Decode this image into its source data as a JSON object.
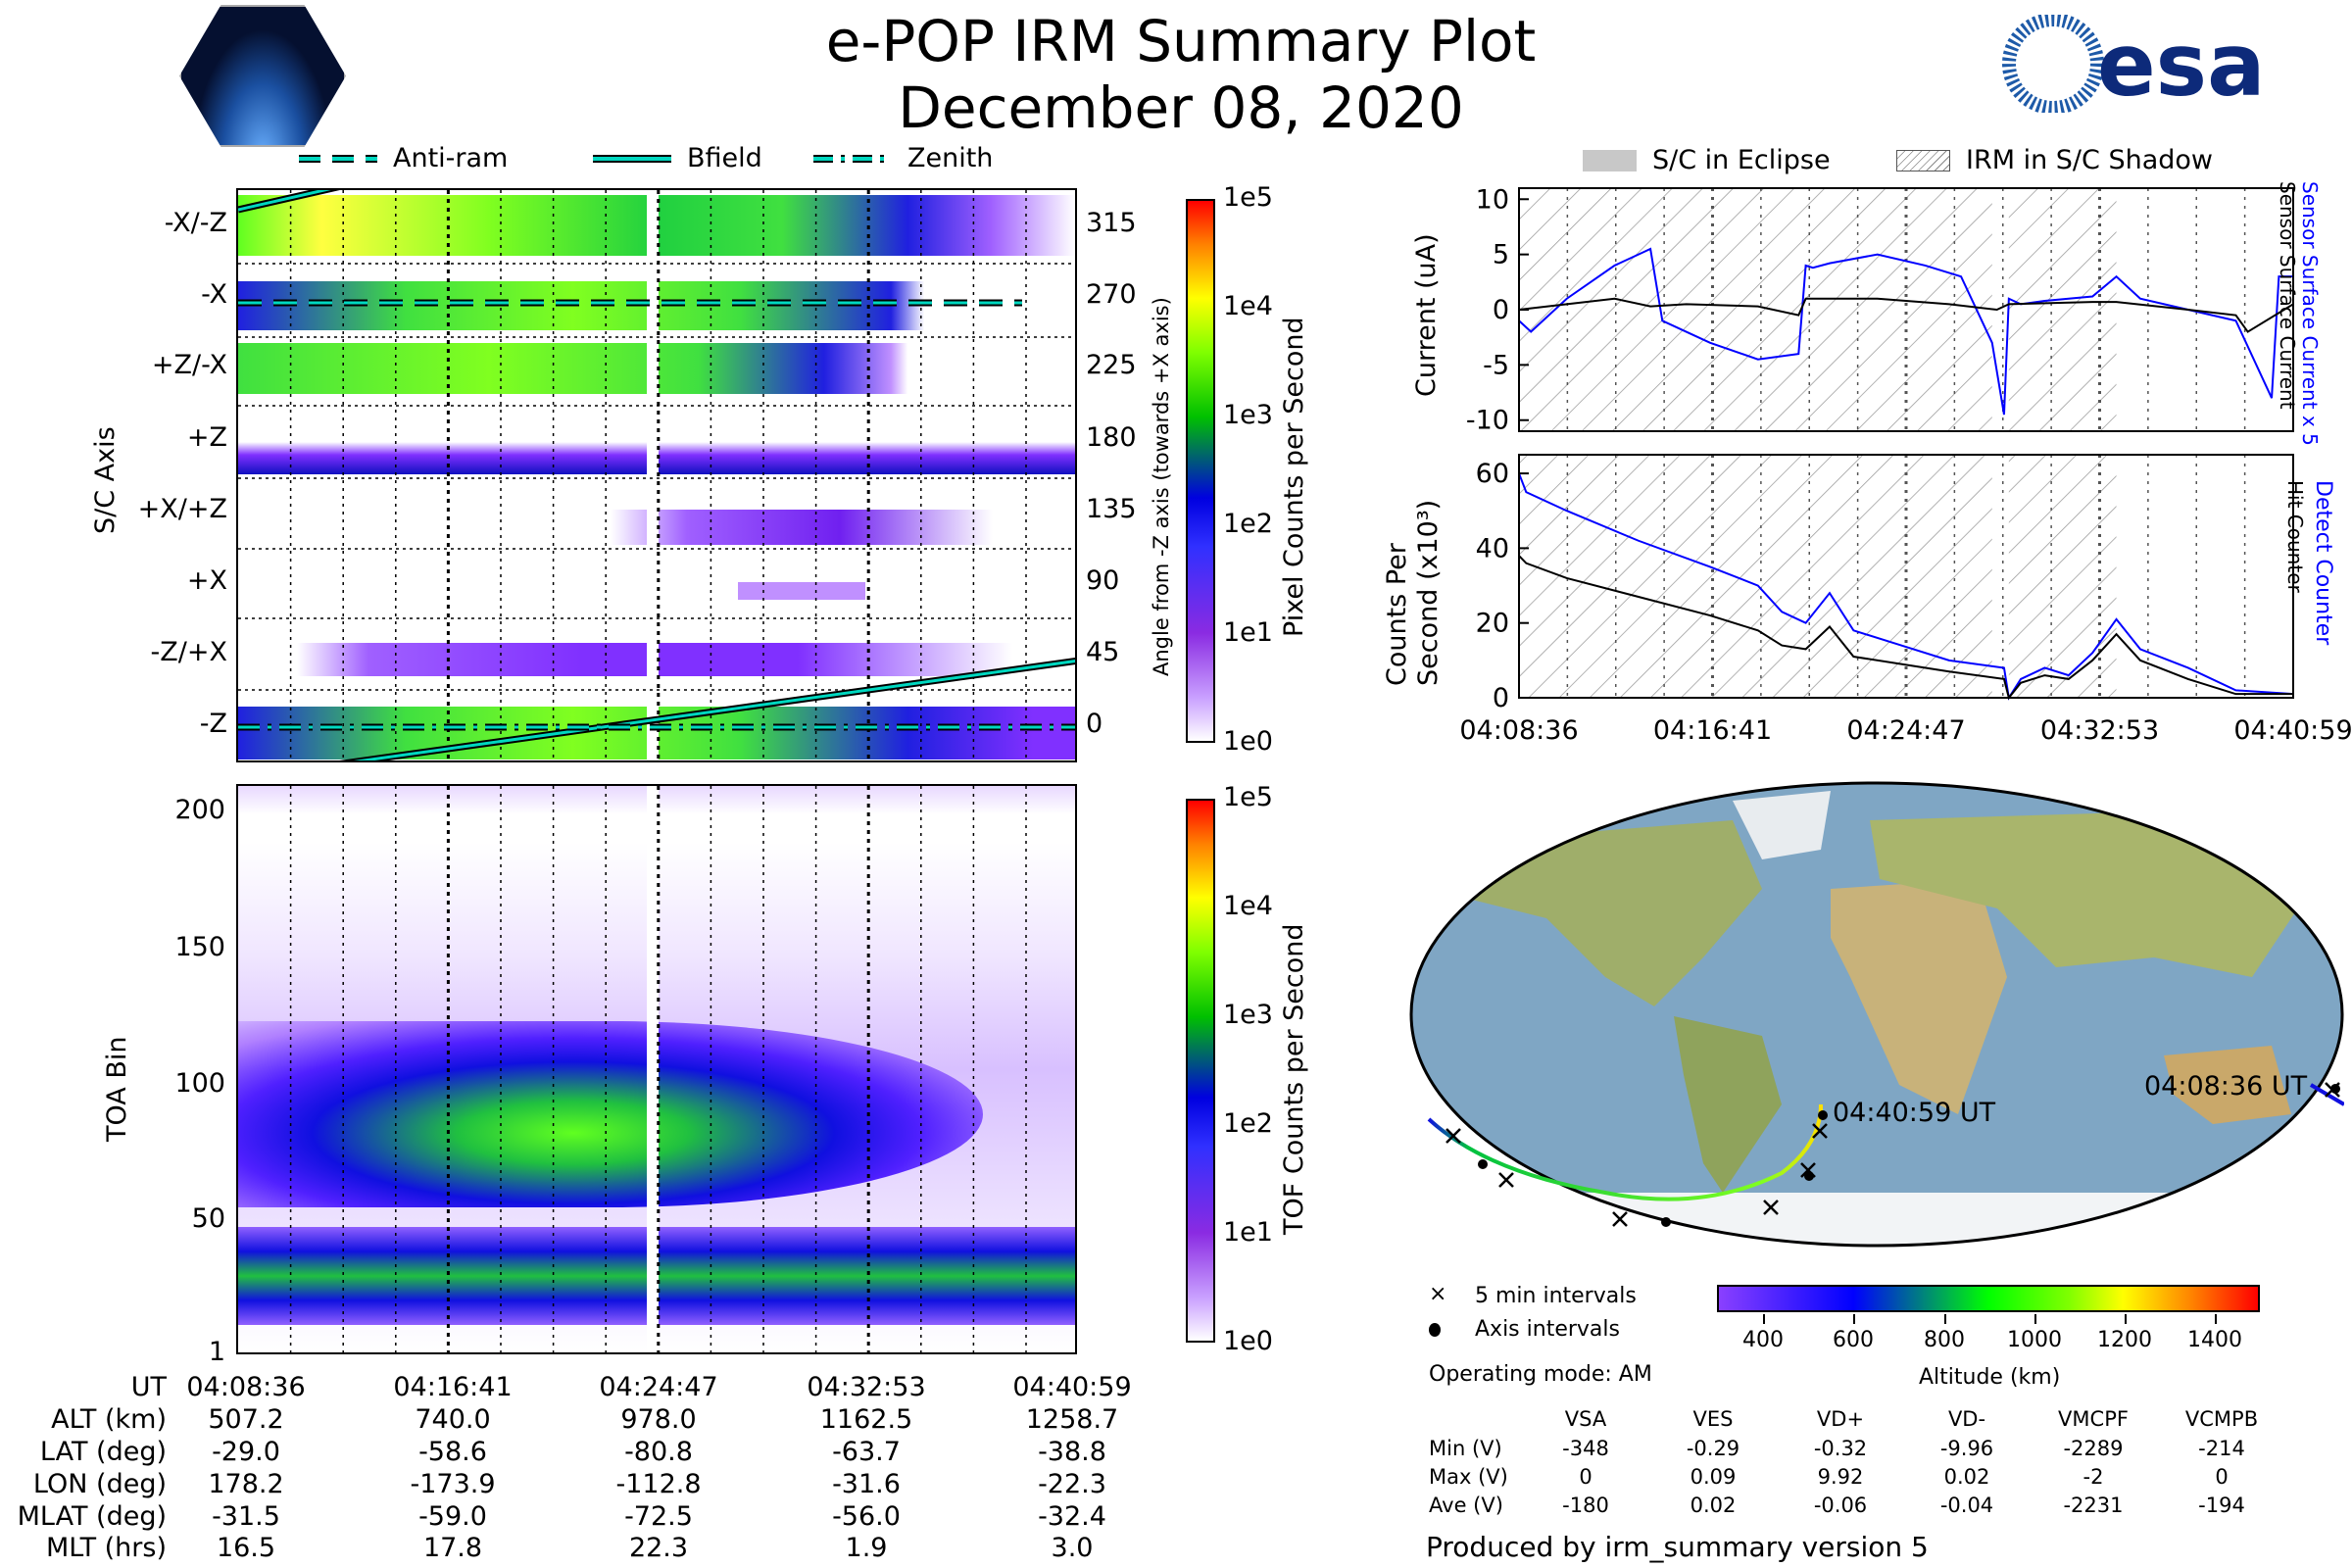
{
  "header": {
    "title": "e-POP IRM Summary Plot",
    "date": "December 08, 2020",
    "logo_left": "CASSIOPE",
    "logo_right": "esa"
  },
  "legend_top": [
    "Anti-ram",
    "Bfield",
    "Zenith"
  ],
  "legend_right": [
    "S/C in Eclipse",
    "IRM in S/C Shadow"
  ],
  "colors": {
    "detect": "#0000ff",
    "hit": "#000000",
    "track_start": "#00c000",
    "track_end": "#ffd700"
  },
  "chart_data": [
    {
      "type": "heatmap",
      "name": "angle-spectrogram",
      "ylabel": "S/C Axis",
      "ylabel_right": "Angle from -Z axis (towards +X axis)",
      "axis_labels": [
        "-X/-Z",
        "-X",
        "+Z/-X",
        "+Z",
        "+X/+Z",
        "+X",
        "-Z/+X",
        "-Z"
      ],
      "right_ticks": [
        "315",
        "270",
        "225",
        "180",
        "135",
        "90",
        "45",
        "0"
      ],
      "colorbar": {
        "label": "Pixel Counts per Second",
        "ticks": [
          "1e5",
          "1e4",
          "1e3",
          "1e2",
          "1e1",
          "1e0"
        ]
      }
    },
    {
      "type": "heatmap",
      "name": "toa-spectrogram",
      "ylabel": "TOA Bin",
      "yticks": [
        "200",
        "150",
        "100",
        "50",
        "1"
      ],
      "ylim": [
        1,
        210
      ],
      "colorbar": {
        "label": "TOF Counts per Second",
        "ticks": [
          "1e5",
          "1e4",
          "1e3",
          "1e2",
          "1e1",
          "1e0"
        ]
      }
    },
    {
      "type": "line",
      "name": "current",
      "ylabel": "Current (uA)",
      "ylim": [
        -11,
        11
      ],
      "yticks": [
        "10",
        "5",
        "0",
        "-5",
        "-10"
      ],
      "xlim": [
        0,
        32.4
      ],
      "series": [
        {
          "name": "Sensor Surface Current x 5",
          "color": "#0000ff",
          "x": [
            0,
            0.5,
            2,
            4,
            5.5,
            6,
            7,
            8,
            10,
            11.7,
            12,
            12.3,
            13,
            15,
            17,
            18.5,
            19.8,
            20.3,
            20.5,
            21,
            22,
            24,
            25,
            26,
            28,
            30,
            31.5,
            31.8,
            32.4
          ],
          "y": [
            -1,
            -2,
            1,
            4,
            5.5,
            -1,
            -2,
            -3,
            -4.5,
            -4,
            4,
            3.8,
            4.2,
            5,
            4,
            3,
            -3,
            -9.5,
            1,
            0.5,
            0.8,
            1.2,
            3,
            1,
            0,
            -1,
            -8,
            3,
            3
          ]
        },
        {
          "name": "Sensor Surface Current",
          "color": "#000000",
          "x": [
            0,
            2,
            4,
            5.5,
            7,
            10,
            11.7,
            12,
            15,
            18,
            20,
            20.5,
            24,
            25,
            28,
            30,
            30.5,
            32.4
          ],
          "y": [
            0,
            0.5,
            1,
            0.3,
            0.5,
            0.3,
            -0.5,
            1,
            1,
            0.5,
            0,
            0.5,
            0.7,
            0.7,
            0,
            -0.5,
            -2,
            0.5
          ]
        }
      ]
    },
    {
      "type": "line",
      "name": "counts",
      "ylabel": "Counts Per Second (x10^3)",
      "ylim": [
        0,
        65
      ],
      "yticks": [
        "60",
        "40",
        "20",
        "0"
      ],
      "xlim": [
        0,
        32.4
      ],
      "xticks": [
        "04:08:36",
        "04:16:41",
        "04:24:47",
        "04:32:53",
        "04:40:59"
      ],
      "series": [
        {
          "name": "Detect Counter",
          "color": "#0000ff",
          "x": [
            0,
            0.3,
            2,
            5,
            8,
            10,
            11,
            12,
            13,
            14,
            16,
            18,
            20.3,
            20.5,
            21,
            22,
            23,
            24,
            25,
            26,
            28,
            30,
            32.4
          ],
          "y": [
            60,
            55,
            50,
            42,
            35,
            30,
            23,
            20,
            28,
            18,
            14,
            10,
            8,
            0,
            5,
            8,
            6,
            12,
            21,
            13,
            8,
            2,
            1
          ]
        },
        {
          "name": "Hit Counter",
          "color": "#000000",
          "x": [
            0,
            0.3,
            2,
            5,
            8,
            10,
            11,
            12,
            13,
            14,
            16,
            18,
            20.3,
            20.5,
            21,
            22,
            23,
            24,
            25,
            26,
            28,
            30,
            32.4
          ],
          "y": [
            38,
            36,
            32,
            27,
            22,
            18,
            14,
            13,
            19,
            11,
            9,
            7,
            5,
            0,
            4,
            6,
            5,
            10,
            17,
            10,
            5,
            1,
            1
          ]
        }
      ]
    }
  ],
  "right_labels": {
    "current_blue": "Sensor Surface Current x 5",
    "current_black": "Sensor Surface Current",
    "counts_blue": "Detect Counter",
    "counts_black": "Hit Counter",
    "counts_ylabel1": "Counts Per",
    "counts_ylabel2": "Second (x10³)"
  },
  "map": {
    "start_label": "04:08:36 UT",
    "end_label": "04:40:59 UT",
    "legend_x": "5 min intervals",
    "legend_dot": "Axis intervals",
    "mode": "Operating mode: AM",
    "alt_label": "Altitude (km)",
    "alt_ticks": [
      "400",
      "600",
      "800",
      "1000",
      "1200",
      "1400"
    ]
  },
  "ephemeris": {
    "rows": [
      "UT",
      "ALT (km)",
      "LAT (deg)",
      "LON (deg)",
      "MLAT (deg)",
      "MLT (hrs)"
    ],
    "cols": [
      [
        "04:08:36",
        "507.2",
        "-29.0",
        "178.2",
        "-31.5",
        "16.5"
      ],
      [
        "04:16:41",
        "740.0",
        "-58.6",
        "-173.9",
        "-59.0",
        "17.8"
      ],
      [
        "04:24:47",
        "978.0",
        "-80.8",
        "-112.8",
        "-72.5",
        "22.3"
      ],
      [
        "04:32:53",
        "1162.5",
        "-63.7",
        "-31.6",
        "-56.0",
        "1.9"
      ],
      [
        "04:40:59",
        "1258.7",
        "-38.8",
        "-22.3",
        "-32.4",
        "3.0"
      ]
    ]
  },
  "voltages": {
    "headers": [
      "VSA",
      "VES",
      "VD+",
      "VD-",
      "VMCPF",
      "VCMPB"
    ],
    "rows": [
      {
        "label": "Min (V)",
        "values": [
          "-348",
          "-0.29",
          "-0.32",
          "-9.96",
          "-2289",
          "-214"
        ]
      },
      {
        "label": "Max (V)",
        "values": [
          "0",
          "0.09",
          "9.92",
          "0.02",
          "-2",
          "0"
        ]
      },
      {
        "label": "Ave (V)",
        "values": [
          "-180",
          "0.02",
          "-0.06",
          "-0.04",
          "-2231",
          "-194"
        ]
      }
    ]
  },
  "footer": "Produced by irm_summary version 5"
}
